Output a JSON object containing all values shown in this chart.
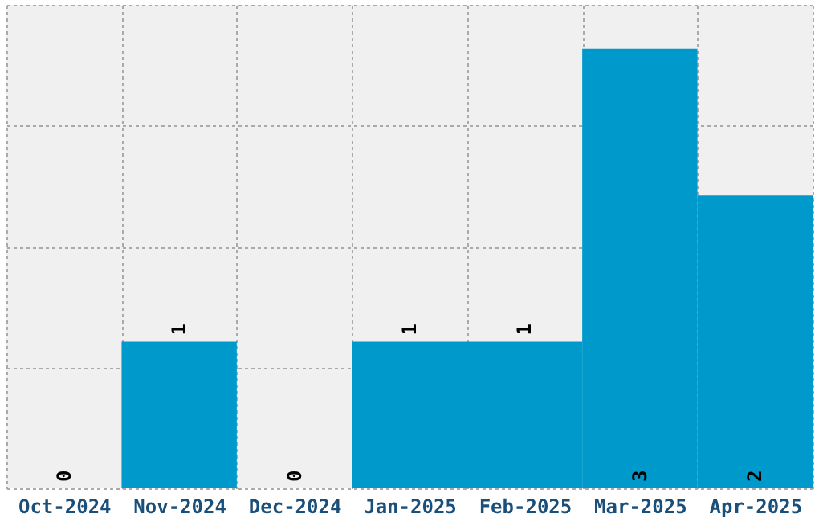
{
  "chart_data": {
    "type": "bar",
    "categories": [
      "Oct-2024",
      "Nov-2024",
      "Dec-2024",
      "Jan-2025",
      "Feb-2025",
      "Mar-2025",
      "Apr-2025"
    ],
    "values": [
      0,
      1,
      0,
      1,
      1,
      3,
      2
    ],
    "color": "#0099cc",
    "ylim": [
      0,
      3.3
    ],
    "yticks": [
      {
        "value": 0,
        "label": null
      },
      {
        "value": 0.825,
        "label": null
      },
      {
        "value": 1.65,
        "label": null
      },
      {
        "value": 2.475,
        "label": null
      },
      {
        "value": 3.3,
        "label": null
      }
    ],
    "tick_labels": "x",
    "grid": true,
    "data_labels": true
  }
}
